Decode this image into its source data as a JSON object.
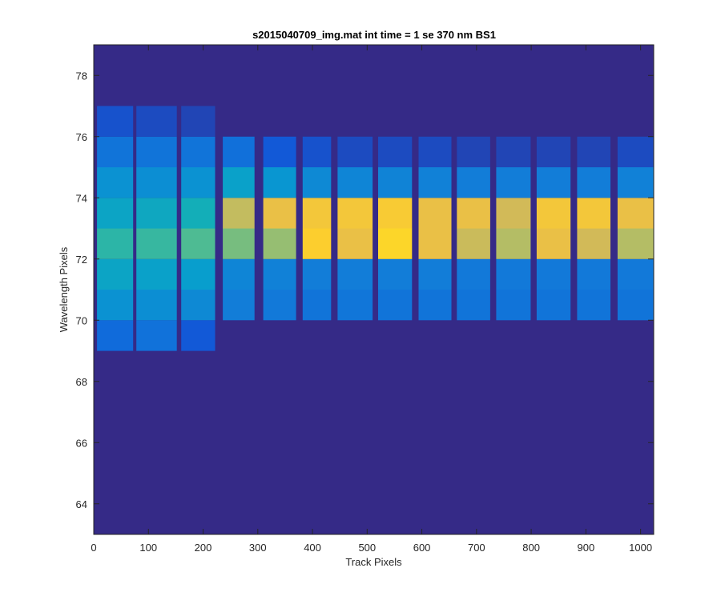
{
  "chart_data": {
    "type": "heatmap",
    "title": "s2015040709_img.mat int time = 1 se  370 nm BS1",
    "xlabel": "Track Pixels",
    "ylabel": "Wavelength Pixels",
    "xlim": [
      0,
      1024
    ],
    "ylim": [
      63,
      79
    ],
    "xticks": [
      0,
      100,
      200,
      300,
      400,
      500,
      600,
      700,
      800,
      900,
      1000
    ],
    "yticks": [
      64,
      66,
      68,
      70,
      72,
      74,
      76,
      78
    ],
    "grid": false,
    "colormap": "parula",
    "background_color": "#352a87",
    "columns": [
      {
        "x0": 6,
        "x1": 72,
        "levels": {
          "76": 0.12,
          "75": 0.26,
          "74": 0.4,
          "73": 0.5,
          "72": 0.62,
          "71": 0.5,
          "70": 0.4,
          "69": 0.22
        }
      },
      {
        "x0": 78,
        "x1": 152,
        "levels": {
          "76": 0.1,
          "75": 0.26,
          "74": 0.38,
          "73": 0.52,
          "72": 0.64,
          "71": 0.48,
          "70": 0.38,
          "69": 0.25
        }
      },
      {
        "x0": 160,
        "x1": 222,
        "levels": {
          "76": 0.08,
          "75": 0.26,
          "74": 0.4,
          "73": 0.56,
          "72": 0.68,
          "71": 0.46,
          "70": 0.36,
          "69": 0.14
        }
      },
      {
        "x0": 236,
        "x1": 294,
        "levels": {
          "75": 0.24,
          "74": 0.48,
          "73": 0.84,
          "72": 0.74,
          "71": 0.34,
          "70": 0.3
        }
      },
      {
        "x0": 310,
        "x1": 370,
        "levels": {
          "75": 0.14,
          "74": 0.42,
          "73": 0.9,
          "72": 0.78,
          "71": 0.32,
          "70": 0.28
        }
      },
      {
        "x0": 382,
        "x1": 434,
        "levels": {
          "75": 0.12,
          "74": 0.36,
          "73": 0.92,
          "72": 0.94,
          "71": 0.3,
          "70": 0.26
        }
      },
      {
        "x0": 446,
        "x1": 510,
        "levels": {
          "75": 0.1,
          "74": 0.34,
          "73": 0.92,
          "72": 0.9,
          "71": 0.3,
          "70": 0.27
        }
      },
      {
        "x0": 520,
        "x1": 582,
        "levels": {
          "75": 0.1,
          "74": 0.33,
          "73": 0.93,
          "72": 0.95,
          "71": 0.3,
          "70": 0.26
        }
      },
      {
        "x0": 594,
        "x1": 654,
        "levels": {
          "75": 0.1,
          "74": 0.32,
          "73": 0.9,
          "72": 0.9,
          "71": 0.3,
          "70": 0.26
        }
      },
      {
        "x0": 664,
        "x1": 725,
        "levels": {
          "75": 0.08,
          "74": 0.3,
          "73": 0.9,
          "72": 0.85,
          "71": 0.28,
          "70": 0.26
        }
      },
      {
        "x0": 736,
        "x1": 799,
        "levels": {
          "75": 0.08,
          "74": 0.3,
          "73": 0.86,
          "72": 0.82,
          "71": 0.28,
          "70": 0.26
        }
      },
      {
        "x0": 810,
        "x1": 872,
        "levels": {
          "75": 0.08,
          "74": 0.3,
          "73": 0.92,
          "72": 0.9,
          "71": 0.28,
          "70": 0.26
        }
      },
      {
        "x0": 884,
        "x1": 945,
        "levels": {
          "75": 0.08,
          "74": 0.3,
          "73": 0.92,
          "72": 0.86,
          "71": 0.28,
          "70": 0.26
        }
      },
      {
        "x0": 958,
        "x1": 1024,
        "levels": {
          "75": 0.1,
          "74": 0.32,
          "73": 0.9,
          "72": 0.82,
          "71": 0.28,
          "70": 0.26
        }
      }
    ]
  }
}
